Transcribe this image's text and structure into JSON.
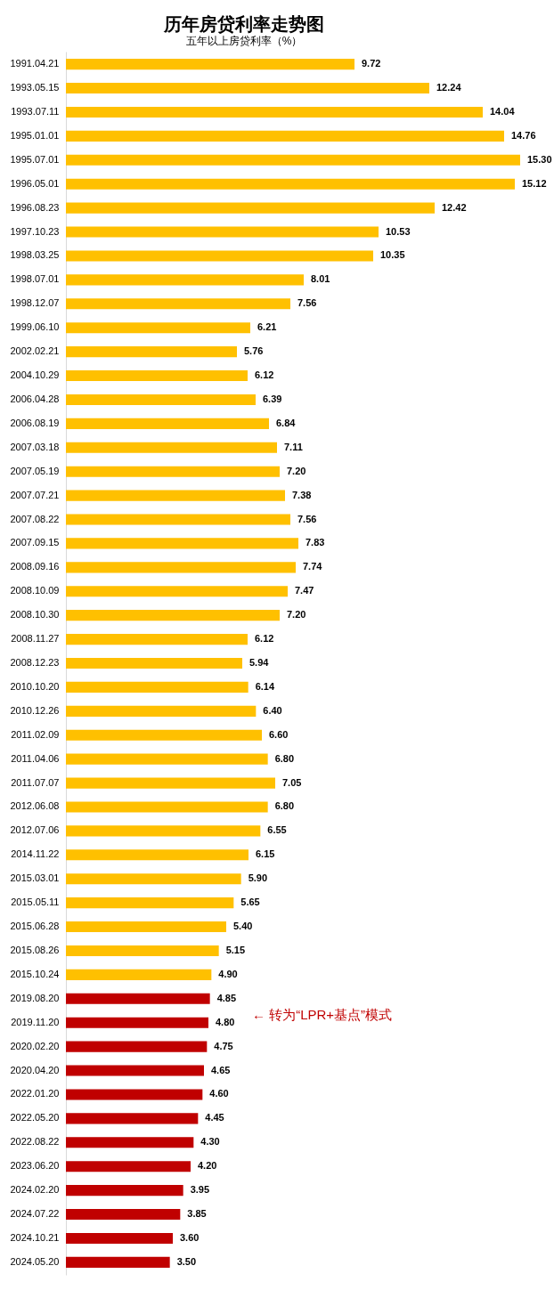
{
  "chart_data": {
    "type": "bar",
    "orientation": "horizontal",
    "title": "历年房贷利率走势图",
    "subtitle": "五年以上房贷利率（%）",
    "categories": [
      "1991.04.21",
      "1993.05.15",
      "1993.07.11",
      "1995.01.01",
      "1995.07.01",
      "1996.05.01",
      "1996.08.23",
      "1997.10.23",
      "1998.03.25",
      "1998.07.01",
      "1998.12.07",
      "1999.06.10",
      "2002.02.21",
      "2004.10.29",
      "2006.04.28",
      "2006.08.19",
      "2007.03.18",
      "2007.05.19",
      "2007.07.21",
      "2007.08.22",
      "2007.09.15",
      "2008.09.16",
      "2008.10.09",
      "2008.10.30",
      "2008.11.27",
      "2008.12.23",
      "2010.10.20",
      "2010.12.26",
      "2011.02.09",
      "2011.04.06",
      "2011.07.07",
      "2012.06.08",
      "2012.07.06",
      "2014.11.22",
      "2015.03.01",
      "2015.05.11",
      "2015.06.28",
      "2015.08.26",
      "2015.10.24",
      "2019.08.20",
      "2019.11.20",
      "2020.02.20",
      "2020.04.20",
      "2022.01.20",
      "2022.05.20",
      "2022.08.22",
      "2023.06.20",
      "2024.02.20",
      "2024.07.22",
      "2024.10.21",
      "2024.05.20"
    ],
    "values": [
      9.72,
      12.24,
      14.04,
      14.76,
      15.3,
      15.12,
      12.42,
      10.53,
      10.35,
      8.01,
      7.56,
      6.21,
      5.76,
      6.12,
      6.39,
      6.84,
      7.11,
      7.2,
      7.38,
      7.56,
      7.83,
      7.74,
      7.47,
      7.2,
      6.12,
      5.94,
      6.14,
      6.4,
      6.6,
      6.8,
      7.05,
      6.8,
      6.55,
      6.15,
      5.9,
      5.65,
      5.4,
      5.15,
      4.9,
      4.85,
      4.8,
      4.75,
      4.65,
      4.6,
      4.45,
      4.3,
      4.2,
      3.95,
      3.85,
      3.6,
      3.5
    ],
    "value_labels": [
      "9.72",
      "12.24",
      "14.04",
      "14.76",
      "15.30",
      "15.12",
      "12.42",
      "10.53",
      "10.35",
      "8.01",
      "7.56",
      "6.21",
      "5.76",
      "6.12",
      "6.39",
      "6.84",
      "7.11",
      "7.20",
      "7.38",
      "7.56",
      "7.83",
      "7.74",
      "7.47",
      "7.20",
      "6.12",
      "5.94",
      "6.14",
      "6.40",
      "6.60",
      "6.80",
      "7.05",
      "6.80",
      "6.55",
      "6.15",
      "5.90",
      "5.65",
      "5.40",
      "5.15",
      "4.90",
      "4.85",
      "4.80",
      "4.75",
      "4.65",
      "4.60",
      "4.45",
      "4.30",
      "4.20",
      "3.95",
      "3.85",
      "3.60",
      "3.50"
    ],
    "colors": [
      "#ffc000",
      "#ffc000",
      "#ffc000",
      "#ffc000",
      "#ffc000",
      "#ffc000",
      "#ffc000",
      "#ffc000",
      "#ffc000",
      "#ffc000",
      "#ffc000",
      "#ffc000",
      "#ffc000",
      "#ffc000",
      "#ffc000",
      "#ffc000",
      "#ffc000",
      "#ffc000",
      "#ffc000",
      "#ffc000",
      "#ffc000",
      "#ffc000",
      "#ffc000",
      "#ffc000",
      "#ffc000",
      "#ffc000",
      "#ffc000",
      "#ffc000",
      "#ffc000",
      "#ffc000",
      "#ffc000",
      "#ffc000",
      "#ffc000",
      "#ffc000",
      "#ffc000",
      "#ffc000",
      "#ffc000",
      "#ffc000",
      "#ffc000",
      "#c00000",
      "#c00000",
      "#c00000",
      "#c00000",
      "#c00000",
      "#c00000",
      "#c00000",
      "#c00000",
      "#c00000",
      "#c00000",
      "#c00000",
      "#c00000"
    ],
    "annotations": [
      "← 转为“LPR+基点”模式"
    ]
  }
}
